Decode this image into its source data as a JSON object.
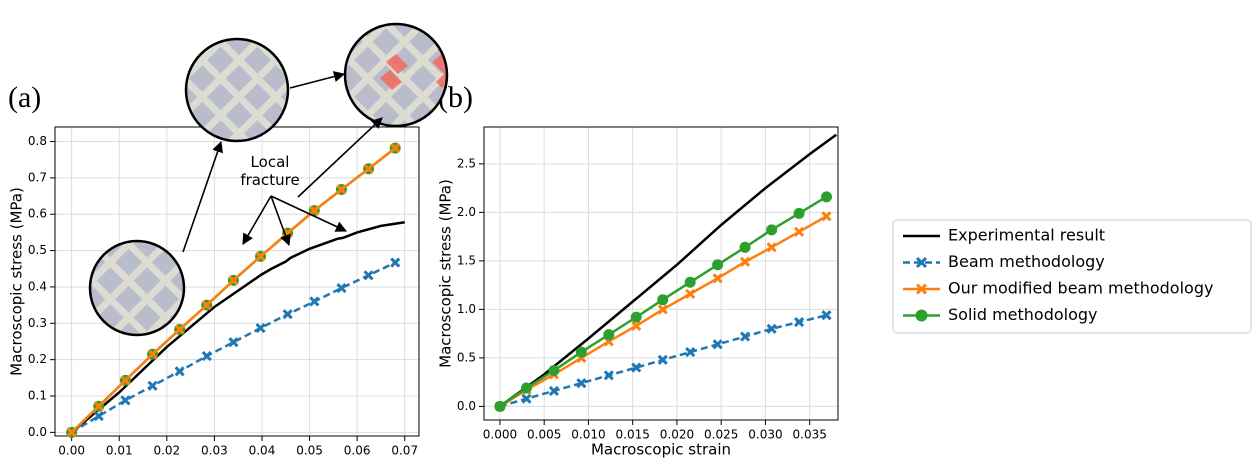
{
  "chart_data": [
    {
      "type": "line",
      "label": "(a)",
      "x_label": "Macroscopic strain",
      "y_label": "Macroscopic stress (MPa)",
      "annotation": "Local fracture",
      "grid": true,
      "xlim": [
        -0.0035,
        0.073
      ],
      "ylim": [
        -0.01,
        0.84
      ],
      "xticks": [
        {
          "value": 0,
          "label": "0.00"
        },
        0.01,
        0.02,
        0.03,
        0.04,
        0.05,
        0.06,
        0.07
      ],
      "yticks": [
        {
          "value": 0,
          "label": "0.0"
        },
        0.1,
        0.2,
        0.3,
        0.4,
        0.5,
        0.6,
        0.7,
        0.8
      ],
      "series": [
        {
          "color": "#000000",
          "x": [
            0,
            0.01,
            0.02,
            0.03,
            0.04,
            0.042,
            0.045,
            0.046,
            0.05,
            0.056,
            0.057,
            0.06,
            0.065,
            0.07
          ],
          "values": [
            0,
            0.11,
            0.235,
            0.345,
            0.435,
            0.45,
            0.47,
            0.48,
            0.505,
            0.533,
            0.535,
            0.55,
            0.568,
            0.578
          ]
        },
        {
          "color": "#1f77b4",
          "linestyle": "dashed",
          "marker": "x",
          "x": [
            0,
            0.0057,
            0.0113,
            0.017,
            0.0227,
            0.0284,
            0.034,
            0.0397,
            0.0454,
            0.051,
            0.0567,
            0.0624,
            0.068
          ],
          "values": [
            0,
            0.045,
            0.088,
            0.128,
            0.168,
            0.21,
            0.248,
            0.287,
            0.325,
            0.36,
            0.397,
            0.432,
            0.467
          ]
        },
        {
          "color": "#2ca02c",
          "marker": "o",
          "x": [
            0,
            0.0057,
            0.0113,
            0.017,
            0.0227,
            0.0284,
            0.034,
            0.0397,
            0.0454,
            0.051,
            0.0567,
            0.0624,
            0.068
          ],
          "values": [
            0,
            0.072,
            0.143,
            0.215,
            0.283,
            0.35,
            0.418,
            0.484,
            0.548,
            0.61,
            0.668,
            0.725,
            0.782
          ]
        },
        {
          "color": "#ff7f0e",
          "marker": "x",
          "x": [
            0,
            0.0057,
            0.0113,
            0.017,
            0.0227,
            0.0284,
            0.034,
            0.0397,
            0.0454,
            0.051,
            0.0567,
            0.0624,
            0.068
          ],
          "values": [
            0,
            0.072,
            0.143,
            0.215,
            0.283,
            0.35,
            0.418,
            0.484,
            0.548,
            0.61,
            0.668,
            0.725,
            0.782
          ]
        }
      ]
    },
    {
      "type": "line",
      "label": "(b)",
      "x_label": "Macroscopic strain",
      "y_label": "Macroscopic stress (MPa)",
      "grid": true,
      "legend": "outside right",
      "xlim": [
        -0.0018,
        0.0382
      ],
      "ylim": [
        -0.14,
        2.88
      ],
      "xticks": [
        {
          "value": 0,
          "label": "0.000"
        },
        0.005,
        {
          "value": 0.01,
          "label": "0.010"
        },
        0.015,
        {
          "value": 0.02,
          "label": "0.020"
        },
        0.025,
        {
          "value": 0.03,
          "label": "0.030"
        },
        0.035
      ],
      "yticks": [
        {
          "value": 0,
          "label": "0.0"
        },
        0.5,
        {
          "value": 1,
          "label": "1.0"
        },
        1.5,
        {
          "value": 2,
          "label": "2.0"
        },
        2.5
      ],
      "series": [
        {
          "name": "Experimental result",
          "color": "#000000",
          "x": [
            0,
            0.005,
            0.01,
            0.015,
            0.02,
            0.025,
            0.03,
            0.035,
            0.038
          ],
          "values": [
            0,
            0.33,
            0.7,
            1.08,
            1.46,
            1.87,
            2.25,
            2.6,
            2.8
          ]
        },
        {
          "name": "Beam methodology",
          "color": "#1f77b4",
          "linestyle": "dashed",
          "marker": "x",
          "x": [
            0,
            0.003,
            0.0061,
            0.0092,
            0.0123,
            0.0154,
            0.0184,
            0.0215,
            0.0246,
            0.0277,
            0.0307,
            0.0338,
            0.0369
          ],
          "values": [
            0,
            0.08,
            0.16,
            0.24,
            0.32,
            0.4,
            0.48,
            0.56,
            0.64,
            0.72,
            0.8,
            0.87,
            0.94
          ]
        },
        {
          "name": "Our modified beam methodology",
          "color": "#ff7f0e",
          "marker": "x",
          "x": [
            0,
            0.003,
            0.0061,
            0.0092,
            0.0123,
            0.0154,
            0.0184,
            0.0215,
            0.0246,
            0.0277,
            0.0307,
            0.0338,
            0.0369
          ],
          "values": [
            0,
            0.17,
            0.33,
            0.5,
            0.67,
            0.83,
            1.0,
            1.16,
            1.32,
            1.49,
            1.64,
            1.8,
            1.96
          ]
        },
        {
          "name": "Solid methodology",
          "color": "#2ca02c",
          "marker": "o",
          "x": [
            0,
            0.003,
            0.0061,
            0.0092,
            0.0123,
            0.0154,
            0.0184,
            0.0215,
            0.0246,
            0.0277,
            0.0307,
            0.0338,
            0.0369
          ],
          "values": [
            0,
            0.19,
            0.37,
            0.56,
            0.74,
            0.92,
            1.1,
            1.28,
            1.46,
            1.64,
            1.82,
            1.99,
            2.16
          ]
        }
      ]
    }
  ]
}
